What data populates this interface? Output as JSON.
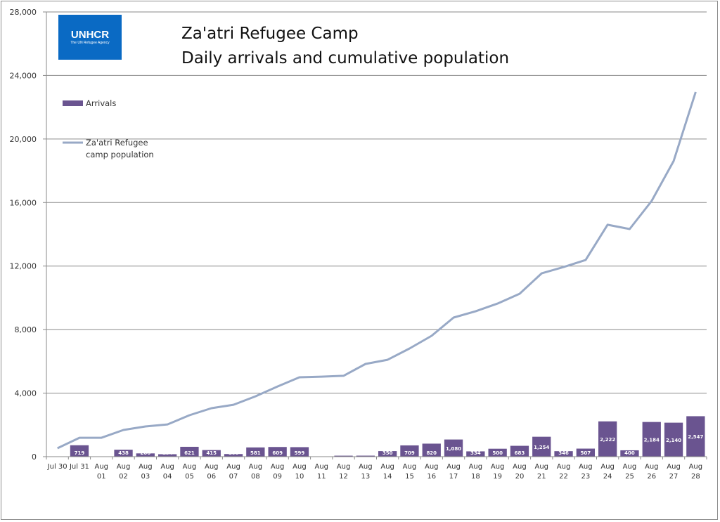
{
  "logo": {
    "name": "UNHCR",
    "tagline": "The UN Refugee Agency",
    "color": "#0a6ac4"
  },
  "chart_data": {
    "type": "bar",
    "title": "Za'atri Refugee Camp",
    "subtitle": "Daily arrivals and cumulative population",
    "xlabel": "",
    "ylabel": "",
    "ylim": [
      0,
      28000
    ],
    "yticks": [
      0,
      4000,
      8000,
      12000,
      16000,
      20000,
      24000,
      28000
    ],
    "ytick_labels": [
      "0",
      "4,000",
      "8,000",
      "12,000",
      "16,000",
      "20,000",
      "24,000",
      "28,000"
    ],
    "grid": true,
    "legend_position": "top-left",
    "categories": [
      "Jul 30",
      "Jul 31",
      "Aug 01",
      "Aug 02",
      "Aug 03",
      "Aug 04",
      "Aug 05",
      "Aug 06",
      "Aug 07",
      "Aug 08",
      "Aug 09",
      "Aug 10",
      "Aug 11",
      "Aug 12",
      "Aug 13",
      "Aug 14",
      "Aug 15",
      "Aug 16",
      "Aug 17",
      "Aug 18",
      "Aug 19",
      "Aug 20",
      "Aug 21",
      "Aug 22",
      "Aug 23",
      "Aug 24",
      "Aug 25",
      "Aug 26",
      "Aug 27",
      "Aug 28"
    ],
    "category_lines": [
      [
        "Jul 30"
      ],
      [
        "Jul 31"
      ],
      [
        "Aug",
        "01"
      ],
      [
        "Aug",
        "02"
      ],
      [
        "Aug",
        "03"
      ],
      [
        "Aug",
        "04"
      ],
      [
        "Aug",
        "05"
      ],
      [
        "Aug",
        "06"
      ],
      [
        "Aug",
        "07"
      ],
      [
        "Aug",
        "08"
      ],
      [
        "Aug",
        "09"
      ],
      [
        "Aug",
        "10"
      ],
      [
        "Aug",
        "11"
      ],
      [
        "Aug",
        "12"
      ],
      [
        "Aug",
        "13"
      ],
      [
        "Aug",
        "14"
      ],
      [
        "Aug",
        "15"
      ],
      [
        "Aug",
        "16"
      ],
      [
        "Aug",
        "17"
      ],
      [
        "Aug",
        "18"
      ],
      [
        "Aug",
        "19"
      ],
      [
        "Aug",
        "20"
      ],
      [
        "Aug",
        "21"
      ],
      [
        "Aug",
        "22"
      ],
      [
        "Aug",
        "23"
      ],
      [
        "Aug",
        "24"
      ],
      [
        "Aug",
        "25"
      ],
      [
        "Aug",
        "26"
      ],
      [
        "Aug",
        "27"
      ],
      [
        "Aug",
        "28"
      ]
    ],
    "series": [
      {
        "name": "Arrivals",
        "type": "bar",
        "color": "#6a5490",
        "values": [
          0,
          719,
          0,
          438,
          206,
          154,
          621,
          415,
          166,
          581,
          609,
          599,
          0,
          62,
          64,
          350,
          709,
          820,
          1080,
          334,
          500,
          683,
          1254,
          346,
          507,
          2222,
          400,
          2184,
          2140,
          2547
        ],
        "labels": [
          "",
          "719",
          "",
          "438",
          "206",
          "154",
          "621",
          "415",
          "166",
          "581",
          "609",
          "599",
          "",
          "",
          "",
          "350",
          "709",
          "820",
          "1,080",
          "334",
          "500",
          "683",
          "1,254",
          "346",
          "507",
          "2,222",
          "400",
          "2,184",
          "2,140",
          "2,547"
        ]
      },
      {
        "name": "Za'atri Refugee camp population",
        "legend_lines": [
          "Za'atri Refugee",
          "camp population"
        ],
        "type": "line",
        "color": "#98a9c6",
        "values": [
          530,
          1190,
          1190,
          1680,
          1900,
          2030,
          2610,
          3050,
          3270,
          3800,
          4420,
          5000,
          5040,
          5090,
          5840,
          6100,
          6810,
          7610,
          8760,
          9150,
          9640,
          10260,
          11540,
          11940,
          12380,
          14600,
          14330,
          16100,
          18620,
          22960
        ]
      }
    ]
  }
}
